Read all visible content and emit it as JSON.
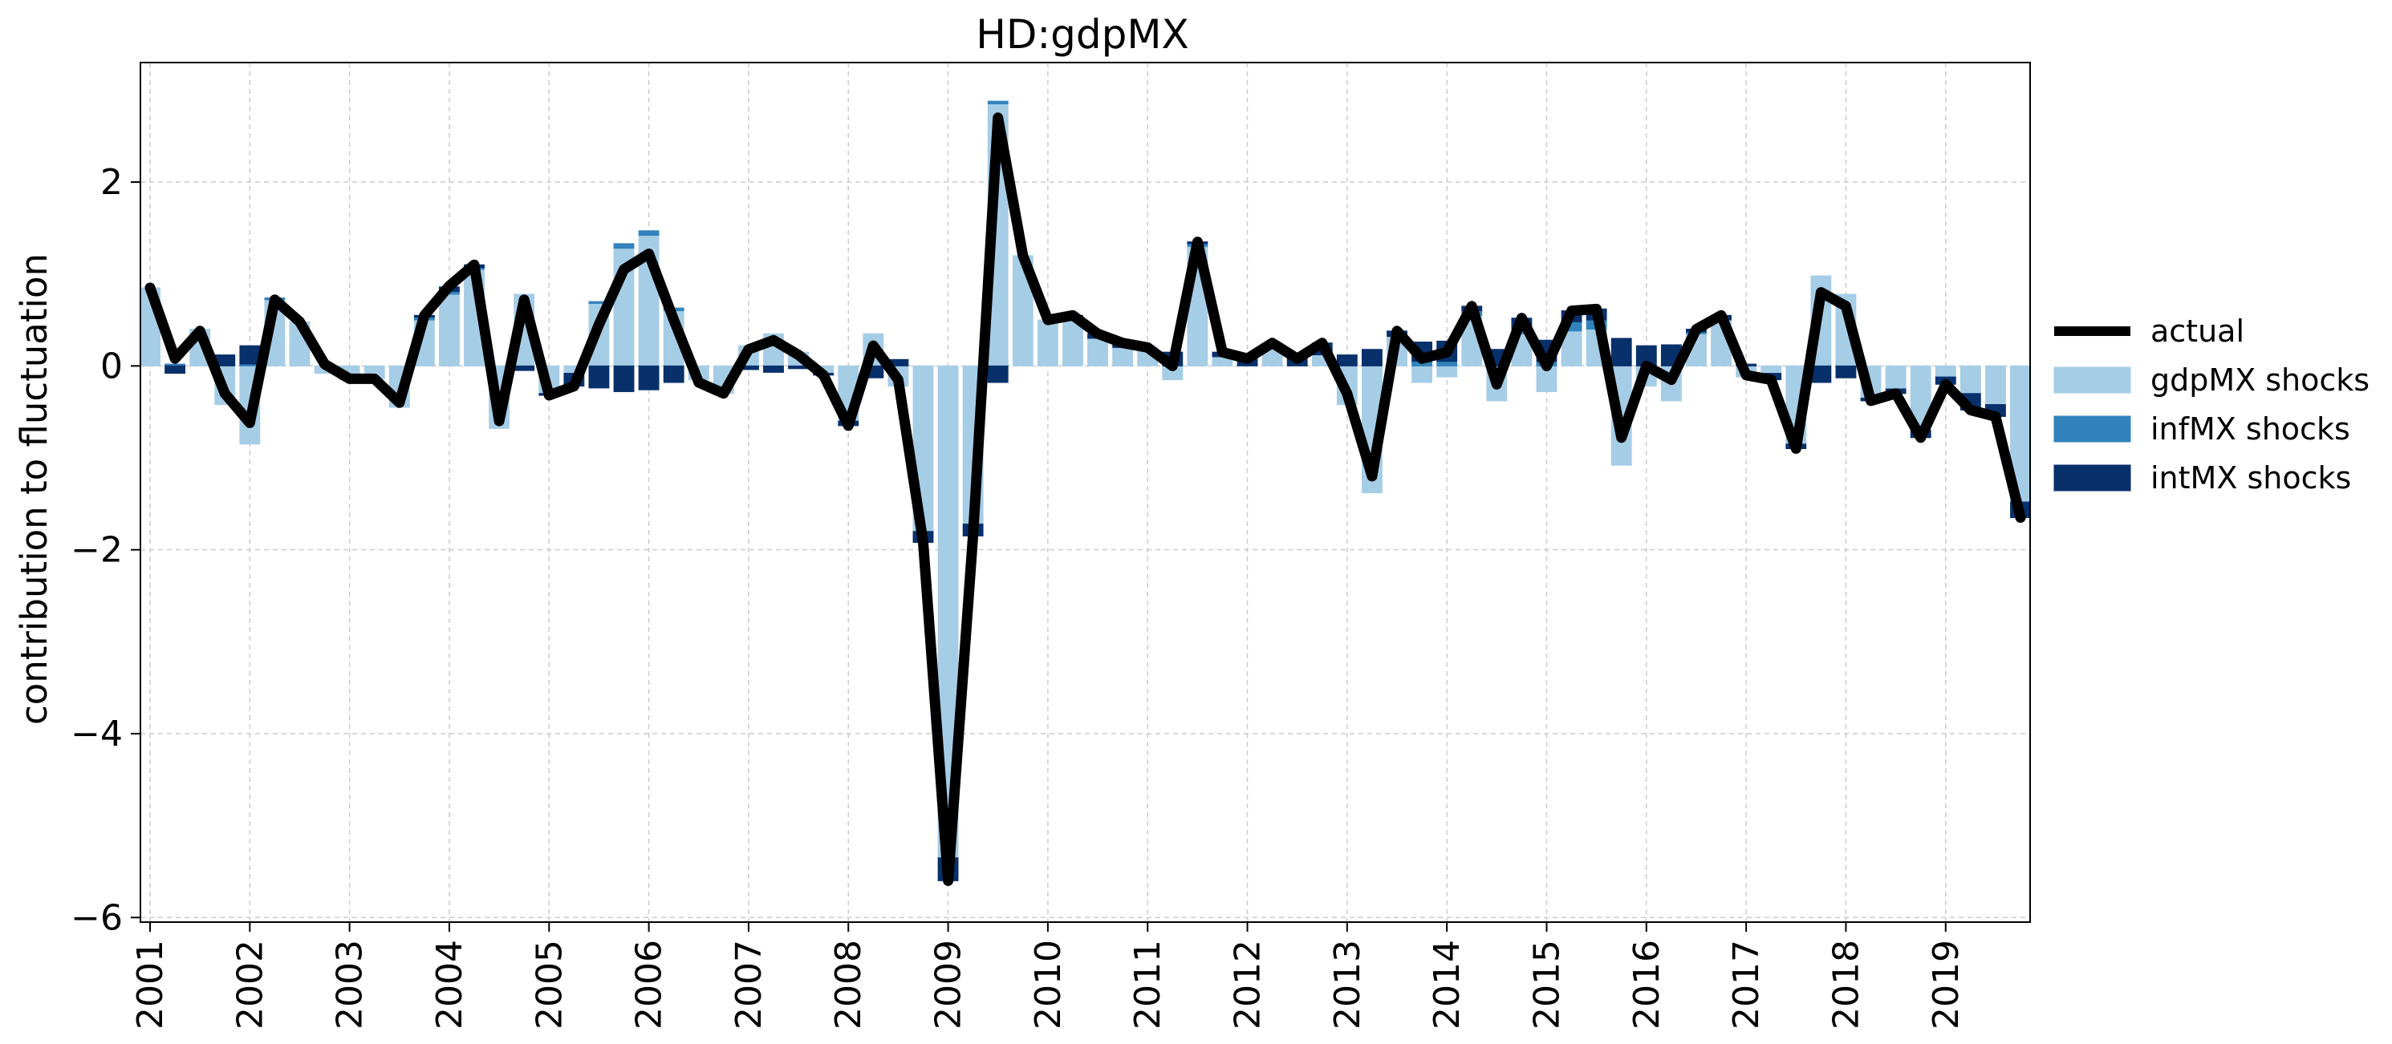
{
  "chart_data": {
    "type": "bar",
    "subtype": "stacked-bar-with-line",
    "title": "HD:gdpMX",
    "xlabel": "",
    "ylabel": "contribution to fluctuation",
    "ylim": [
      -6.05,
      3.3
    ],
    "yticks": [
      -6,
      -4,
      -2,
      0,
      2
    ],
    "ytick_labels": [
      "−6",
      "−4",
      "−2",
      "0",
      "2"
    ],
    "x_start": "2001Q1",
    "frequency": "quarterly",
    "xtick_labels": [
      "2001",
      "2002",
      "2003",
      "2004",
      "2005",
      "2006",
      "2007",
      "2008",
      "2009",
      "2010",
      "2011",
      "2012",
      "2013",
      "2014",
      "2015",
      "2016",
      "2017",
      "2018",
      "2019"
    ],
    "grid": true,
    "legend_position": "right",
    "series": [
      {
        "name": "actual",
        "kind": "line",
        "color": "#000000",
        "values": [
          0.85,
          0.08,
          0.38,
          -0.3,
          -0.62,
          0.72,
          0.48,
          0.02,
          -0.14,
          -0.14,
          -0.4,
          0.55,
          0.87,
          1.1,
          -0.6,
          0.72,
          -0.32,
          -0.22,
          0.45,
          1.05,
          1.22,
          0.5,
          -0.18,
          -0.3,
          0.18,
          0.28,
          0.12,
          -0.1,
          -0.65,
          0.22,
          -0.15,
          -1.92,
          -5.6,
          -1.85,
          2.7,
          1.2,
          0.5,
          0.55,
          0.35,
          0.25,
          0.2,
          0.0,
          1.35,
          0.15,
          0.08,
          0.25,
          0.08,
          0.25,
          -0.3,
          -1.2,
          0.38,
          0.08,
          0.15,
          0.65,
          -0.2,
          0.52,
          0.0,
          0.6,
          0.62,
          -0.78,
          0.0,
          -0.15,
          0.4,
          0.55,
          -0.1,
          -0.15,
          -0.9,
          0.8,
          0.65,
          -0.38,
          -0.3,
          -0.78,
          -0.2,
          -0.48,
          -0.55,
          -1.65
        ]
      },
      {
        "name": "gdpMX shocks",
        "kind": "bar",
        "color": "#a6cde6",
        "values": [
          0.85,
          0.0,
          0.4,
          -0.42,
          -0.85,
          0.72,
          0.48,
          -0.08,
          -0.15,
          -0.14,
          -0.45,
          0.5,
          0.78,
          1.05,
          -0.68,
          0.78,
          -0.3,
          -0.08,
          0.68,
          1.28,
          1.42,
          0.6,
          -0.15,
          -0.3,
          0.22,
          0.35,
          0.15,
          -0.08,
          -0.6,
          0.35,
          -0.22,
          -1.8,
          -5.35,
          -1.72,
          2.85,
          1.2,
          0.5,
          0.52,
          0.3,
          0.2,
          0.2,
          -0.15,
          1.3,
          0.1,
          0.0,
          0.25,
          0.0,
          0.12,
          -0.42,
          -1.38,
          0.32,
          -0.18,
          -0.12,
          0.55,
          -0.38,
          0.35,
          -0.28,
          0.38,
          0.4,
          -1.08,
          -0.22,
          -0.38,
          0.35,
          0.5,
          -0.12,
          -0.08,
          -0.85,
          0.98,
          0.78,
          -0.35,
          -0.25,
          -0.7,
          -0.12,
          -0.3,
          -0.42,
          -1.48
        ]
      },
      {
        "name": "infMX shocks",
        "kind": "bar",
        "color": "#3282bd",
        "values": [
          0.0,
          0.02,
          0.0,
          0.0,
          0.02,
          0.02,
          0.0,
          0.0,
          0.0,
          0.0,
          0.0,
          0.03,
          0.03,
          0.02,
          0.0,
          0.0,
          0.0,
          0.0,
          0.02,
          0.05,
          0.05,
          0.03,
          0.0,
          0.0,
          0.0,
          0.0,
          0.0,
          0.0,
          0.0,
          0.0,
          0.0,
          0.0,
          0.0,
          0.0,
          0.03,
          0.0,
          0.0,
          0.0,
          0.0,
          0.0,
          0.0,
          0.0,
          0.03,
          0.0,
          0.0,
          0.0,
          0.0,
          0.0,
          0.0,
          0.0,
          0.0,
          0.05,
          0.05,
          0.05,
          0.0,
          0.05,
          0.05,
          0.1,
          0.1,
          0.0,
          0.0,
          0.0,
          0.02,
          0.0,
          0.0,
          0.0,
          0.0,
          0.0,
          0.0,
          0.0,
          0.0,
          0.0,
          0.0,
          0.0,
          0.0,
          0.0
        ]
      },
      {
        "name": "intMX shocks",
        "kind": "bar",
        "color": "#08306b",
        "values": [
          0.0,
          -0.08,
          0.0,
          0.12,
          0.2,
          0.0,
          0.0,
          0.0,
          0.0,
          0.0,
          0.0,
          0.02,
          0.05,
          0.03,
          0.0,
          -0.05,
          -0.02,
          -0.14,
          -0.24,
          -0.28,
          -0.26,
          -0.18,
          0.0,
          0.0,
          -0.04,
          -0.07,
          -0.03,
          -0.02,
          -0.05,
          -0.13,
          0.07,
          -0.12,
          -0.25,
          -0.13,
          -0.18,
          0.0,
          0.0,
          0.03,
          0.05,
          0.05,
          0.0,
          0.15,
          0.02,
          0.05,
          0.08,
          0.0,
          0.08,
          0.13,
          0.12,
          0.18,
          0.06,
          0.21,
          0.22,
          0.05,
          0.18,
          0.12,
          0.23,
          0.12,
          0.12,
          0.3,
          0.22,
          0.23,
          0.03,
          0.05,
          0.02,
          -0.07,
          -0.05,
          -0.18,
          -0.13,
          -0.03,
          -0.05,
          -0.08,
          -0.08,
          -0.18,
          -0.13,
          -0.17
        ]
      }
    ]
  }
}
